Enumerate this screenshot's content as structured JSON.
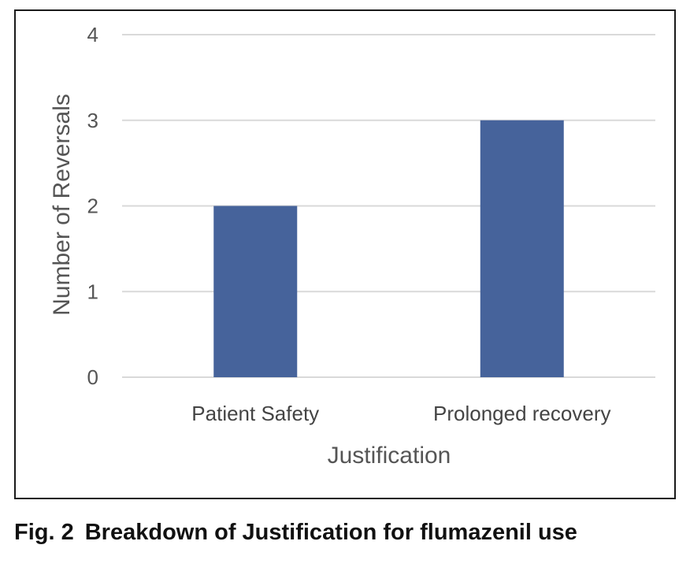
{
  "chart_data": {
    "type": "bar",
    "categories": [
      "Patient Safety",
      "Prolonged recovery"
    ],
    "values": [
      2,
      3
    ],
    "xlabel": "Justification",
    "ylabel": "Number of Reversals",
    "ylim": [
      0,
      4
    ],
    "yticks": [
      0,
      1,
      2,
      3,
      4
    ],
    "grid": true,
    "bar_color": "#46639b",
    "grid_color": "#d9d9d9"
  },
  "caption": {
    "number": "Fig. 2",
    "text": "Breakdown of Justification for flumazenil use"
  }
}
